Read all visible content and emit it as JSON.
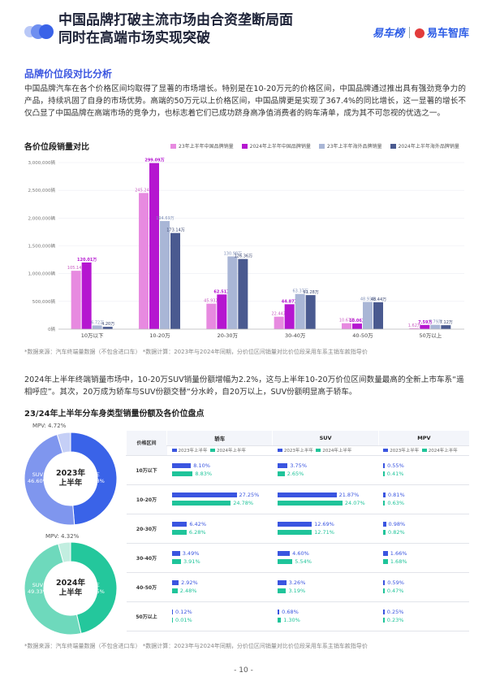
{
  "header": {
    "title_line1": "中国品牌打破主流市场由合资垄断局面",
    "title_line2": "同时在高端市场实现突破",
    "logo1": "易车榜",
    "logo2": "易车智库"
  },
  "section1": {
    "heading": "品牌价位段对比分析",
    "paragraph": "中国品牌汽车在各个价格区间均取得了显著的市场增长。特别是在10-20万元的价格区间，中国品牌通过推出具有强劲竞争力的产品，持续巩固了自身的市场优势。高端的50万元以上价格区间，中国品牌更是实现了367.4%的同比增长，这一显著的增长不仅凸显了中国品牌在高端市场的竞争力，也标志着它们已成功跻身高净值消费者的购车清单，成为其不可忽视的优选之一。"
  },
  "chart_data": {
    "type": "bar",
    "title": "各价位段销量对比",
    "categories": [
      "10万以下",
      "10-20万",
      "20-30万",
      "30-40万",
      "40-50万",
      "50万以上"
    ],
    "ylim": [
      0,
      3000000
    ],
    "yticks": [
      "0辆",
      "500,000辆",
      "1,000,000辆",
      "1,500,000辆",
      "2,000,000辆",
      "2,500,000辆",
      "3,000,000辆"
    ],
    "series": [
      {
        "name": "23年上半年中国品牌销量",
        "color": "#e78ae0",
        "values": [
          1051400,
          2452400,
          459300,
          224400,
          106700,
          16200
        ],
        "labels": [
          "105.14万",
          "245.24万",
          "45.93万",
          "22.44万",
          "10.67万",
          "1.62万"
        ]
      },
      {
        "name": "2024年上半年中国品牌销量",
        "color": "#b516d0",
        "values": [
          1200100,
          2990900,
          625100,
          448700,
          100600,
          75900
        ],
        "labels": [
          "120.01万",
          "299.09万",
          "62.51万",
          "44.87万",
          "10.06万",
          "7.59万"
        ]
      },
      {
        "name": "23年上半年海外品牌销量",
        "color": "#a9b6d6",
        "values": [
          67200,
          1946900,
          1309800,
          633700,
          489300,
          77900
        ],
        "labels": [
          "6.72万",
          "194.69万",
          "130.98万",
          "63.37万",
          "48.93万",
          "7.79万"
        ]
      },
      {
        "name": "2024年上半年海外品牌销量",
        "color": "#4a5a90",
        "values": [
          42000,
          1731400,
          1263600,
          612800,
          484400,
          71200
        ],
        "labels": [
          "4.20万",
          "173.14万",
          "126.36万",
          "61.28万",
          "48.44万",
          "7.12万"
        ]
      }
    ]
  },
  "note1": "*数据来源：汽车终端量数据（不包含进口车）   *数据计算：2023年与2024年同期，分价位区间销量对比价位段采用车系主销车款指导价",
  "paragraph2": "2024年上半年终端销量市场中，10-20万SUV销量份额增幅为2.2%，这与上半年10-20万价位区间数量最高的全新上市车系“遥相呼应”。其次，20万成为轿车与SUV份额交替“分水岭，自20万以上，SUV份额明显高于轿车。",
  "section2": {
    "heading": "23/24年上半年分车身类型销量份额及各价位盘点"
  },
  "donut2023": {
    "center": [
      "2023年",
      "上半年"
    ],
    "labels": {
      "mpv": "MPV: 4.72%",
      "suv": "SUV\n46.60%",
      "car": "轿车\n48.68%"
    },
    "values": [
      48.68,
      46.6,
      4.72
    ],
    "colors": [
      "#3a63e8",
      "#7f96ee",
      "#c5cff6"
    ]
  },
  "donut2024": {
    "center": [
      "2024年",
      "上半年"
    ],
    "labels": {
      "mpv": "MPV: 4.32%",
      "suv": "SUV\n49.33%",
      "car": "轿车\n46.35%"
    },
    "values": [
      46.35,
      49.33,
      4.32
    ],
    "colors": [
      "#24c79c",
      "#6ed9bc",
      "#c2eee0"
    ]
  },
  "table": {
    "col_header": "价格区间",
    "groups": [
      "轿车",
      "SUV",
      "MPV"
    ],
    "legend_a": "2023年上半年",
    "legend_b": "2024年上半年",
    "rows": [
      {
        "label": "10万以下",
        "vals": [
          [
            "8.10%",
            "8.83%"
          ],
          [
            "3.75%",
            "2.65%"
          ],
          [
            "0.55%",
            "0.41%"
          ]
        ],
        "num": [
          [
            8.1,
            8.83
          ],
          [
            3.75,
            2.65
          ],
          [
            0.55,
            0.41
          ]
        ]
      },
      {
        "label": "10-20万",
        "vals": [
          [
            "27.25%",
            "24.78%"
          ],
          [
            "21.87%",
            "24.07%"
          ],
          [
            "0.81%",
            "0.63%"
          ]
        ],
        "num": [
          [
            27.25,
            24.78
          ],
          [
            21.87,
            24.07
          ],
          [
            0.81,
            0.63
          ]
        ]
      },
      {
        "label": "20-30万",
        "vals": [
          [
            "6.42%",
            "6.28%"
          ],
          [
            "12.69%",
            "12.71%"
          ],
          [
            "0.98%",
            "0.82%"
          ]
        ],
        "num": [
          [
            6.42,
            6.28
          ],
          [
            12.69,
            12.71
          ],
          [
            0.98,
            0.82
          ]
        ]
      },
      {
        "label": "30-40万",
        "vals": [
          [
            "3.49%",
            "3.91%"
          ],
          [
            "4.60%",
            "5.54%"
          ],
          [
            "1.66%",
            "1.68%"
          ]
        ],
        "num": [
          [
            3.49,
            3.91
          ],
          [
            4.6,
            5.54
          ],
          [
            1.66,
            1.68
          ]
        ]
      },
      {
        "label": "40-50万",
        "vals": [
          [
            "2.92%",
            "2.48%"
          ],
          [
            "3.26%",
            "3.19%"
          ],
          [
            "0.59%",
            "0.47%"
          ]
        ],
        "num": [
          [
            2.92,
            2.48
          ],
          [
            3.26,
            3.19
          ],
          [
            0.59,
            0.47
          ]
        ]
      },
      {
        "label": "50万以上",
        "vals": [
          [
            "0.12%",
            "0.01%"
          ],
          [
            "0.68%",
            "1.30%"
          ],
          [
            "0.25%",
            "0.23%"
          ]
        ],
        "num": [
          [
            0.12,
            0.01
          ],
          [
            0.68,
            1.3
          ],
          [
            0.25,
            0.23
          ]
        ]
      }
    ]
  },
  "note2": "*数据来源：汽车终端量数据（不包含进口车）   *数据计算：2023年与2024年同期，分价位区间销量对比价位段采用车系主销车款指导价",
  "page_number": "- 10 -"
}
